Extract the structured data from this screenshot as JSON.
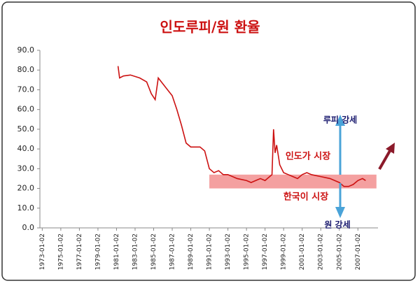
{
  "chart_data": {
    "type": "line",
    "title": "인도루피/원 환율",
    "x": [
      "1981-03",
      "1981-05",
      "1981-10",
      "1982-07",
      "1983-07",
      "1984-04",
      "1984-10",
      "1985-03",
      "1985-07",
      "1986-01",
      "1986-07",
      "1987-01",
      "1987-07",
      "1988-01",
      "1988-07",
      "1989-01",
      "1990-01",
      "1990-07",
      "1991-01",
      "1991-07",
      "1992-01",
      "1992-07",
      "1993-01",
      "1994-01",
      "1995-01",
      "1995-07",
      "1996-01",
      "1996-07",
      "1997-01",
      "1997-07",
      "1997-10",
      "1997-12",
      "1998-02",
      "1998-04",
      "1998-08",
      "1999-01",
      "1999-07",
      "2000-01",
      "2000-07",
      "2001-01",
      "2001-07",
      "2002-01",
      "2003-01",
      "2004-01",
      "2005-01",
      "2005-07",
      "2006-01",
      "2006-07",
      "2007-01",
      "2007-07",
      "2007-11"
    ],
    "series": [
      {
        "name": "인도루피/원",
        "color": "#cc1111",
        "values": [
          82,
          76,
          77,
          77.5,
          76,
          74,
          68,
          65,
          76,
          73,
          70,
          67,
          60,
          52,
          43,
          41,
          41,
          39,
          30,
          28,
          29,
          27,
          27,
          25,
          24,
          23,
          24,
          25,
          24,
          26,
          27,
          50,
          38,
          42,
          32,
          28,
          27,
          26,
          25,
          27,
          28,
          27,
          26,
          25,
          23,
          21,
          21,
          22,
          24,
          25,
          24
        ]
      }
    ],
    "xlim": [
      "1972-10",
      "2009-03"
    ],
    "xticks": [
      "1973-01-02",
      "1975-01-02",
      "1977-01-02",
      "1979-01-02",
      "1981-01-02",
      "1983-01-02",
      "1985-01-02",
      "1987-01-02",
      "1989-01-02",
      "1991-01-02",
      "1993-01-02",
      "1995-01-02",
      "1997-01-02",
      "1999-01-02",
      "2001-01-02",
      "2003-01-02",
      "2005-01-02",
      "2007-01-02"
    ],
    "ylim": [
      0,
      90
    ],
    "yticks": [
      {
        "value": 0,
        "label": "0.0"
      },
      {
        "value": 10,
        "label": "10.0"
      },
      {
        "value": 20,
        "label": "20.0"
      },
      {
        "value": 30,
        "label": "30.0"
      },
      {
        "value": 40,
        "label": "40.0"
      },
      {
        "value": 50,
        "label": "50.0"
      },
      {
        "value": 60,
        "label": "60.0"
      },
      {
        "value": 70,
        "label": "70.0"
      },
      {
        "value": 80,
        "label": "80.0"
      },
      {
        "value": 90,
        "label": "90.0"
      }
    ],
    "band": {
      "x": [
        "1991-01",
        "2009-01"
      ],
      "y": [
        20,
        27
      ],
      "color": "#f08080"
    },
    "annotations": {
      "rupee_strong": "루피 강세",
      "won_strong": "원 강세",
      "india_market": "인도가 시장",
      "korea_market": "한국이 시장"
    }
  }
}
